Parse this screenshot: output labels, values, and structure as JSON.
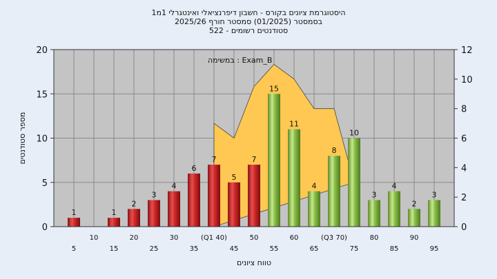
{
  "chart_data": {
    "type": "bar",
    "title_lines": [
      "היסטוגרמת ציונים בקורס - חשבון דיפרנציאלי ואינטגרלי 1מ1",
      "בסמסטר  (01/2025)  סמסטר חורף 2025/26",
      "סטודנטים רשומים - 522"
    ],
    "annotation": "Exam_B : במשימה",
    "xlabel": "טווח ציונים",
    "ylabel": "מספר סטודנטים",
    "x_tick_labels": [
      "5",
      "10",
      "15",
      "20",
      "25",
      "30",
      "35",
      "(Q1 40)",
      "45",
      "50",
      "55",
      "60",
      "65",
      "(Q3 70)",
      "75",
      "80",
      "85",
      "90",
      "95"
    ],
    "categories": [
      5,
      10,
      15,
      20,
      25,
      30,
      35,
      40,
      45,
      50,
      55,
      60,
      65,
      70,
      75,
      80,
      85,
      90,
      95
    ],
    "values": [
      1,
      0,
      1,
      2,
      3,
      4,
      6,
      7,
      5,
      7,
      15,
      11,
      4,
      8,
      10,
      3,
      4,
      2,
      3
    ],
    "value_labels": [
      "1",
      "",
      "1",
      "2",
      "3",
      "4",
      "6",
      "7",
      "5",
      "7",
      "15",
      "11",
      "4",
      "8",
      "10",
      "3",
      "4",
      "2",
      "3"
    ],
    "ylim": [
      0,
      20
    ],
    "yticks": [
      0,
      5,
      10,
      15,
      20
    ],
    "y2lim": [
      0,
      12
    ],
    "y2ticks": [
      0,
      2,
      4,
      6,
      8,
      10,
      12
    ],
    "area_series": {
      "x": [
        40,
        40,
        45,
        50,
        55,
        60,
        65,
        70,
        75
      ],
      "y": [
        0,
        7,
        6,
        9.5,
        11,
        10,
        8,
        8,
        3
      ]
    },
    "colors": {
      "low_bar": "#d42a2a",
      "high_bar": "#8cc04a",
      "area": "#ffc852",
      "plot_bg": "#c4c4c4",
      "page_bg": "#e7eef8"
    },
    "grid": true
  }
}
